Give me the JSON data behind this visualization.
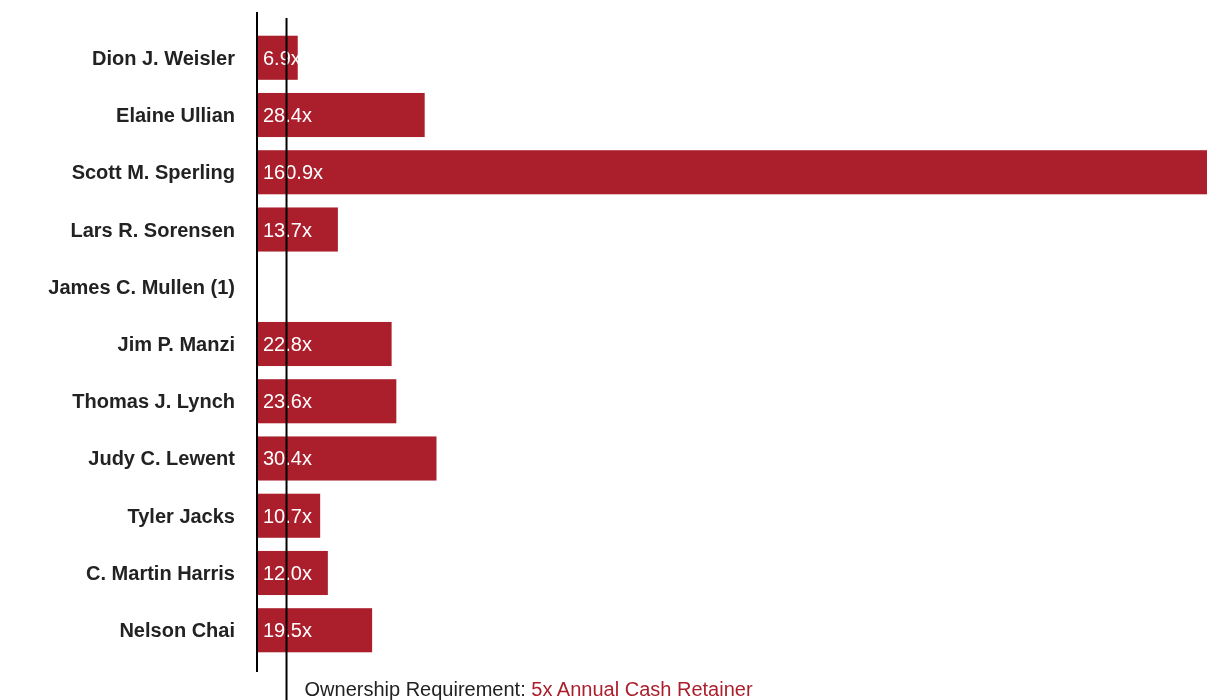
{
  "chart_data": {
    "type": "bar",
    "orientation": "horizontal",
    "categories": [
      "Dion J. Weisler",
      "Elaine Ullian",
      "Scott M. Sperling",
      "Lars R. Sorensen",
      "James C. Mullen (1)",
      "Jim P. Manzi",
      "Thomas J. Lynch",
      "Judy C. Lewent",
      "Tyler Jacks",
      "C. Martin Harris",
      "Nelson Chai"
    ],
    "values": [
      6.9,
      28.4,
      160.9,
      13.7,
      null,
      22.8,
      23.6,
      30.4,
      10.7,
      12.0,
      19.5
    ],
    "value_labels": [
      "6.9x",
      "28.4x",
      "160.9x",
      "13.7x",
      null,
      "22.8x",
      "23.6x",
      "30.4x",
      "10.7x",
      "12.0x",
      "19.5x"
    ],
    "color": "#ab1f2d",
    "xlim": [
      0,
      160.9
    ],
    "ref_lines": [
      {
        "axis": "x",
        "value": 5,
        "label": "Ownership Requirement: 5x Annual Cash Retainer",
        "color": "#000000"
      }
    ]
  }
}
